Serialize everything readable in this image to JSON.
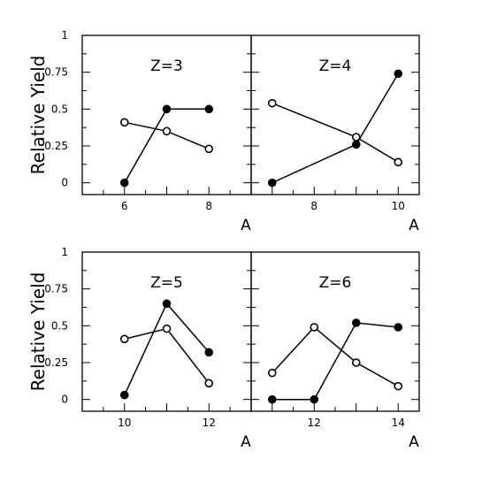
{
  "chart_data": [
    {
      "type": "line",
      "title": "Z=3",
      "xlabel": "A",
      "ylabel": "Relative Yield",
      "xlim": [
        5,
        9
      ],
      "ylim": [
        -0.08,
        1
      ],
      "x_ticks": [
        "6",
        "8"
      ],
      "y_ticks": [
        "0",
        "0.25",
        "0.5",
        "0.75",
        "1"
      ],
      "series": [
        {
          "marker": "filled",
          "x": [
            6,
            7,
            8
          ],
          "y": [
            0.0,
            0.5,
            0.5
          ]
        },
        {
          "marker": "open",
          "x": [
            6,
            7,
            8
          ],
          "y": [
            0.41,
            0.35,
            0.23
          ]
        }
      ]
    },
    {
      "type": "line",
      "title": "Z=4",
      "xlabel": "A",
      "ylabel": "",
      "xlim": [
        6.5,
        10.5
      ],
      "ylim": [
        -0.08,
        1
      ],
      "x_ticks": [
        "8",
        "10"
      ],
      "y_ticks": [],
      "series": [
        {
          "marker": "filled",
          "x": [
            7,
            9,
            10
          ],
          "y": [
            0.0,
            0.26,
            0.74
          ]
        },
        {
          "marker": "open",
          "x": [
            7,
            9,
            10
          ],
          "y": [
            0.54,
            0.31,
            0.14
          ]
        }
      ]
    },
    {
      "type": "line",
      "title": "Z=5",
      "xlabel": "A",
      "ylabel": "Relative Yield",
      "xlim": [
        9,
        13
      ],
      "ylim": [
        -0.08,
        1
      ],
      "x_ticks": [
        "10",
        "12"
      ],
      "y_ticks": [
        "0",
        "0.25",
        "0.5",
        "0.75",
        "1"
      ],
      "series": [
        {
          "marker": "filled",
          "x": [
            10,
            11,
            12
          ],
          "y": [
            0.03,
            0.65,
            0.32
          ]
        },
        {
          "marker": "open",
          "x": [
            10,
            11,
            12
          ],
          "y": [
            0.41,
            0.48,
            0.11
          ]
        }
      ]
    },
    {
      "type": "line",
      "title": "Z=6",
      "xlabel": "A",
      "ylabel": "",
      "xlim": [
        10.5,
        14.5
      ],
      "ylim": [
        -0.08,
        1
      ],
      "x_ticks": [
        "12",
        "14"
      ],
      "y_ticks": [],
      "series": [
        {
          "marker": "filled",
          "x": [
            11,
            12,
            13,
            14
          ],
          "y": [
            0.0,
            0.0,
            0.52,
            0.49
          ]
        },
        {
          "marker": "open",
          "x": [
            11,
            12,
            13,
            14
          ],
          "y": [
            0.18,
            0.49,
            0.25,
            0.09
          ]
        }
      ]
    }
  ]
}
